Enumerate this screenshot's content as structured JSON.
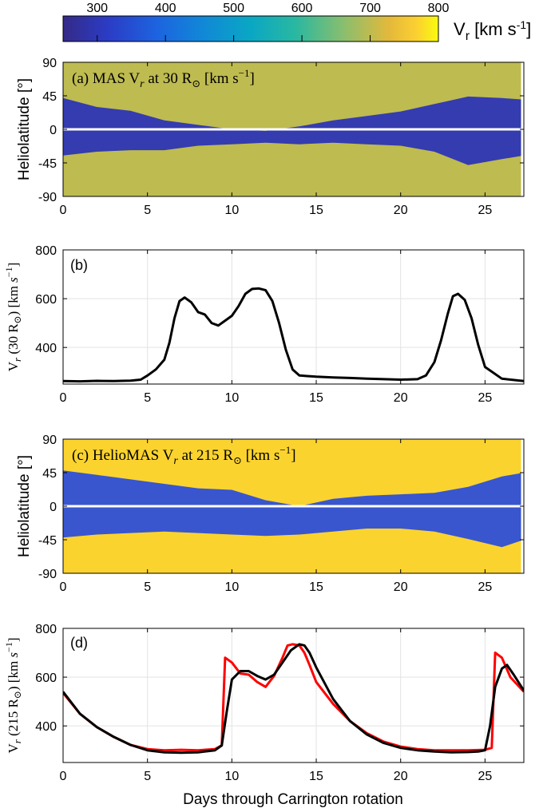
{
  "figure": {
    "colorbar": {
      "min": 250,
      "max": 800,
      "ticks": [
        "300",
        "400",
        "500",
        "600",
        "700",
        "800"
      ],
      "label_main": "V",
      "label_sub": "r",
      "label_unit": " [km s",
      "label_exp": "-1",
      "label_close": "]"
    },
    "xlabel": "Days through Carrington rotation"
  },
  "chart_data": [
    {
      "id": "a",
      "type": "heatmap",
      "title_prefix": "(a) MAS V",
      "title_sub": "r",
      "title_mid": " at 30 R",
      "title_sun": "⊙",
      "title_unit": " [km s",
      "title_exp": "−1",
      "title_close": "]",
      "ylabel": "Heliolatitude [°]",
      "xlim": [
        0,
        27.3
      ],
      "ylim": [
        -90,
        90
      ],
      "xticks": [
        "0",
        "5",
        "10",
        "15",
        "20",
        "25"
      ],
      "yticks": [
        "90",
        "45",
        "0",
        "-45",
        "-90"
      ],
      "background_speed": 700,
      "slow_band": {
        "x": [
          0,
          2,
          4,
          6,
          8,
          10,
          12,
          14,
          16,
          18,
          20,
          22,
          24,
          26,
          27.3
        ],
        "upper": [
          42,
          30,
          25,
          12,
          6,
          0,
          -2,
          4,
          12,
          18,
          24,
          34,
          44,
          42,
          40
        ],
        "lower": [
          -35,
          -30,
          -28,
          -28,
          -22,
          -20,
          -18,
          -20,
          -18,
          -20,
          -22,
          -30,
          -48,
          -40,
          -35
        ]
      },
      "equator_line": 0
    },
    {
      "id": "b",
      "type": "line",
      "label": "(b)",
      "ylabel_a": "V",
      "ylabel_sub": "r",
      "ylabel_b": " (30 R",
      "ylabel_sun": "⊙",
      "ylabel_c": ") [km ",
      "ylabel_s": "s",
      "ylabel_exp": "−1",
      "ylabel_close": "]",
      "xlim": [
        0,
        27.3
      ],
      "ylim": [
        250,
        800
      ],
      "xticks": [
        "0",
        "5",
        "10",
        "15",
        "20",
        "25"
      ],
      "yticks": [
        "400",
        "600",
        "800"
      ],
      "grid": true,
      "series": [
        {
          "color": "#000000",
          "x": [
            0,
            1,
            2,
            3,
            4,
            4.6,
            5,
            5.5,
            6,
            6.3,
            6.6,
            6.9,
            7.2,
            7.6,
            8,
            8.4,
            8.8,
            9.2,
            9.6,
            10,
            10.4,
            10.8,
            11.2,
            11.6,
            12,
            12.4,
            12.8,
            13.2,
            13.6,
            14,
            15,
            16,
            17,
            18,
            19,
            20,
            21,
            21.5,
            22,
            22.4,
            22.8,
            23.1,
            23.4,
            23.8,
            24.2,
            24.6,
            25,
            26,
            27.3
          ],
          "y": [
            262,
            261,
            263,
            262,
            264,
            268,
            285,
            310,
            350,
            420,
            520,
            590,
            605,
            585,
            545,
            535,
            500,
            490,
            510,
            530,
            570,
            620,
            640,
            642,
            635,
            590,
            500,
            390,
            310,
            285,
            280,
            277,
            275,
            272,
            270,
            268,
            270,
            285,
            340,
            430,
            540,
            610,
            620,
            595,
            520,
            410,
            320,
            272,
            262
          ]
        }
      ]
    },
    {
      "id": "c",
      "type": "heatmap",
      "title_prefix": "(c) HelioMAS V",
      "title_sub": "r",
      "title_mid": " at 215 R",
      "title_sun": "⊙",
      "title_unit": " [km s",
      "title_exp": "−1",
      "title_close": "]",
      "ylabel": "Heliolatitude [°]",
      "xlim": [
        0,
        27.3
      ],
      "ylim": [
        -90,
        90
      ],
      "xticks": [
        "0",
        "5",
        "10",
        "15",
        "20",
        "25"
      ],
      "yticks": [
        "90",
        "45",
        "0",
        "-45",
        "-90"
      ],
      "background_speed": 770,
      "slow_band": {
        "x": [
          0,
          2,
          4,
          6,
          8,
          10,
          12,
          14,
          16,
          18,
          20,
          22,
          24,
          26,
          27.3
        ],
        "upper": [
          48,
          42,
          36,
          30,
          24,
          22,
          8,
          0,
          10,
          14,
          16,
          18,
          26,
          40,
          45
        ],
        "lower": [
          -42,
          -38,
          -36,
          -34,
          -36,
          -38,
          -40,
          -38,
          -34,
          -30,
          -30,
          -34,
          -44,
          -55,
          -45
        ]
      },
      "equator_line": 0
    },
    {
      "id": "d",
      "type": "line",
      "label": "(d)",
      "ylabel_a": "V",
      "ylabel_sub": "r",
      "ylabel_b": " (215 R",
      "ylabel_sun": "⊙",
      "ylabel_c": ") [km ",
      "ylabel_s": "s",
      "ylabel_exp": "−1",
      "ylabel_close": "]",
      "xlim": [
        0,
        27.3
      ],
      "ylim": [
        250,
        800
      ],
      "xticks": [
        "0",
        "5",
        "10",
        "15",
        "20",
        "25"
      ],
      "yticks": [
        "400",
        "600",
        "800"
      ],
      "grid": true,
      "series": [
        {
          "color": "#ff0000",
          "x": [
            0,
            1,
            2,
            3,
            4,
            5,
            6,
            7,
            8,
            9,
            9.4,
            9.6,
            10,
            10.5,
            11,
            11.5,
            12,
            12.5,
            13,
            13.3,
            13.6,
            14,
            14.3,
            14.6,
            15,
            16,
            17,
            18,
            19,
            20,
            21,
            22,
            23,
            24,
            25,
            25.4,
            25.6,
            26,
            26.5,
            27.3
          ],
          "y": [
            535,
            450,
            395,
            355,
            322,
            305,
            300,
            302,
            300,
            305,
            320,
            680,
            660,
            615,
            610,
            580,
            560,
            605,
            680,
            730,
            735,
            730,
            700,
            650,
            580,
            490,
            420,
            370,
            335,
            315,
            305,
            300,
            300,
            300,
            302,
            310,
            700,
            680,
            600,
            540
          ]
        },
        {
          "color": "#000000",
          "x": [
            0,
            1,
            2,
            3,
            4,
            5,
            6,
            7,
            8,
            9,
            9.4,
            9.7,
            10,
            10.5,
            11,
            11.5,
            12,
            12.5,
            13,
            13.5,
            14,
            14.3,
            14.6,
            15,
            16,
            17,
            18,
            19,
            20,
            21,
            22,
            23,
            24,
            24.6,
            25,
            25.3,
            25.6,
            26,
            26.3,
            26.7,
            27.3
          ],
          "y": [
            540,
            450,
            395,
            355,
            322,
            300,
            292,
            290,
            292,
            300,
            320,
            460,
            590,
            625,
            625,
            605,
            590,
            610,
            660,
            710,
            735,
            730,
            700,
            640,
            510,
            420,
            365,
            330,
            310,
            300,
            295,
            292,
            293,
            295,
            300,
            400,
            560,
            635,
            650,
            610,
            545
          ]
        }
      ]
    }
  ]
}
